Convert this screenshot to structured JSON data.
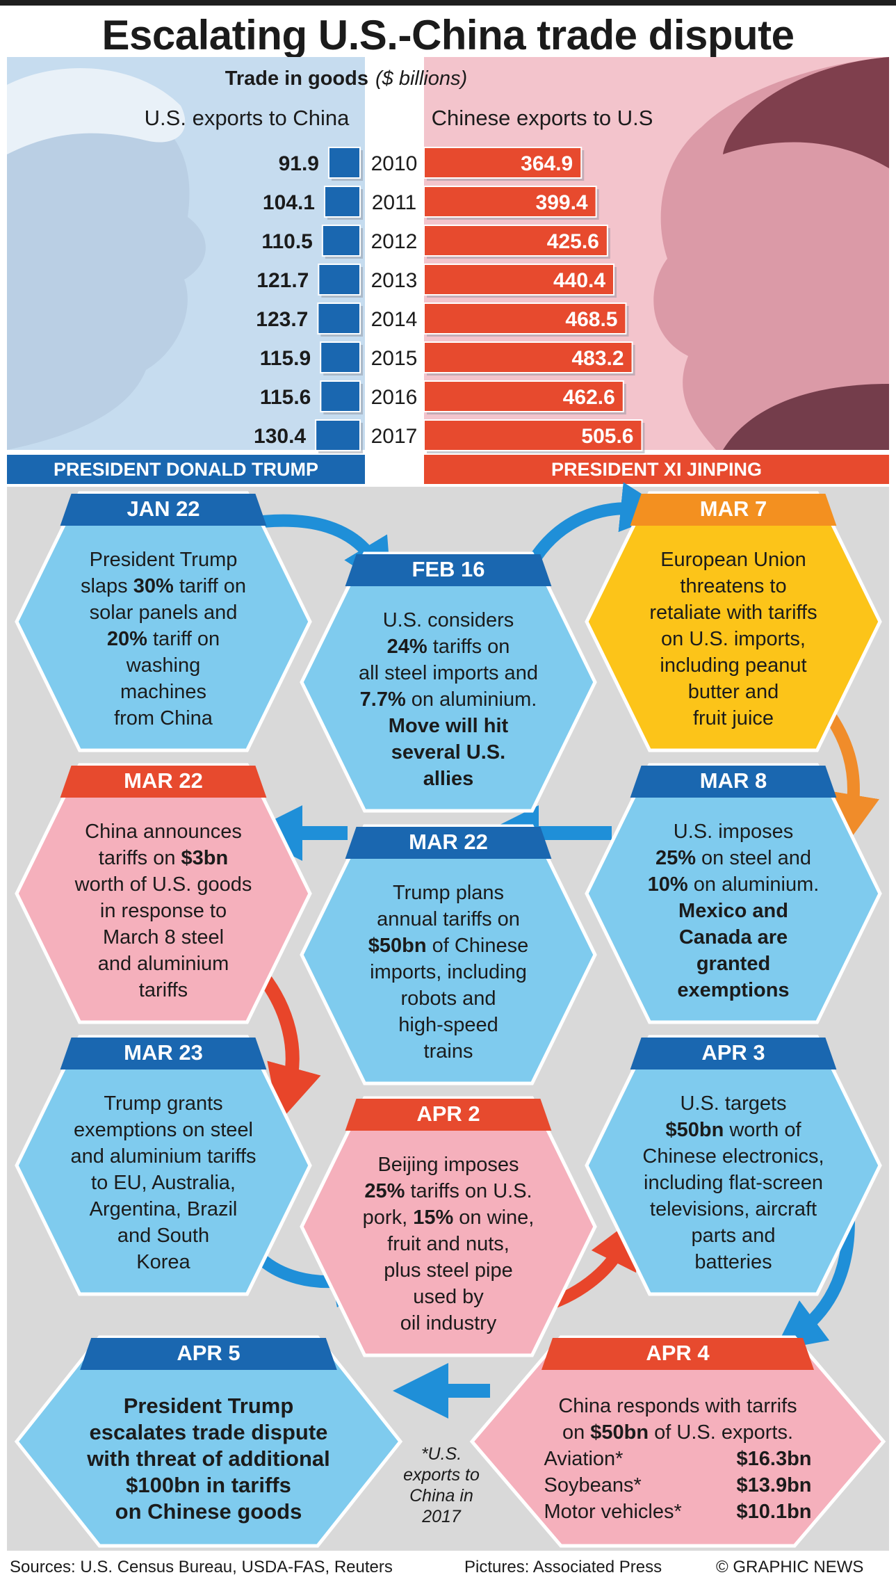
{
  "title": "Escalating U.S.-China trade dispute",
  "trade": {
    "heading": "Trade in goods",
    "unit": "($ billions)",
    "left_label": "PRESIDENT DONALD TRUMP",
    "right_label": "PRESIDENT XI JINPING"
  },
  "chart_data": {
    "type": "bar",
    "title": "Trade in goods ($ billions)",
    "categories": [
      "2010",
      "2011",
      "2012",
      "2013",
      "2014",
      "2015",
      "2016",
      "2017"
    ],
    "series": [
      {
        "name": "U.S. exports to China",
        "values": [
          91.9,
          104.1,
          110.5,
          121.7,
          123.7,
          115.9,
          115.6,
          130.4
        ],
        "color": "#1a67b0"
      },
      {
        "name": "Chinese exports to U.S",
        "values": [
          364.9,
          399.4,
          425.6,
          440.4,
          468.5,
          483.2,
          462.6,
          505.6
        ],
        "color": "#e74a2e"
      }
    ],
    "value_labels": {
      "us": [
        "91.9",
        "104.1",
        "110.5",
        "121.7",
        "123.7",
        "115.9",
        "115.6",
        "130.4"
      ],
      "china": [
        "364.9",
        "399.4",
        "425.6",
        "440.4",
        "468.5",
        "483.2",
        "462.6",
        "505.6"
      ]
    }
  },
  "timeline": [
    {
      "id": "jan22",
      "date": "JAN 22",
      "theme": "blue",
      "lines": [
        "President Trump",
        "slaps **30%** tariff on",
        "solar panels and",
        "**20%** tariff on",
        "washing",
        "machines",
        "from China"
      ]
    },
    {
      "id": "feb16",
      "date": "FEB 16",
      "theme": "blue",
      "lines": [
        "U.S. considers",
        "**24%** tariffs on",
        "all steel imports and",
        "**7.7%** on aluminium.",
        "**Move will hit**",
        "**several U.S.**",
        "**allies**"
      ]
    },
    {
      "id": "mar7",
      "date": "MAR 7",
      "theme": "yellow",
      "lines": [
        "European Union",
        "threatens to",
        "retaliate with tariffs",
        "on U.S. imports,",
        "including peanut",
        "butter and",
        "fruit juice"
      ]
    },
    {
      "id": "mar22a",
      "date": "MAR 22",
      "theme": "pink",
      "lines": [
        "China announces",
        "tariffs on **$3bn**",
        "worth of U.S. goods",
        "in response to",
        "March 8 steel",
        "and aluminium",
        "tariffs"
      ]
    },
    {
      "id": "mar22b",
      "date": "MAR 22",
      "theme": "blue",
      "lines": [
        "Trump plans",
        "annual tariffs on",
        "**$50bn** of Chinese",
        "imports, including",
        "robots and",
        "high-speed",
        "trains"
      ]
    },
    {
      "id": "mar8",
      "date": "MAR 8",
      "theme": "blue",
      "lines": [
        "U.S. imposes",
        "**25%** on steel and",
        "**10%** on aluminium.",
        "**Mexico and**",
        "**Canada are**",
        "**granted**",
        "**exemptions**"
      ]
    },
    {
      "id": "mar23",
      "date": "MAR 23",
      "theme": "blue",
      "lines": [
        "Trump grants",
        "exemptions on steel",
        "and aluminium tariffs",
        "to EU, Australia,",
        "Argentina, Brazil",
        "and South",
        "Korea"
      ]
    },
    {
      "id": "apr2",
      "date": "APR 2",
      "theme": "pink",
      "lines": [
        "Beijing imposes",
        "**25%** tariffs on U.S.",
        "pork, **15%** on wine,",
        "fruit and nuts,",
        "plus steel pipe",
        "used by",
        "oil industry"
      ]
    },
    {
      "id": "apr3",
      "date": "APR 3",
      "theme": "blue",
      "lines": [
        "U.S. targets",
        "**$50bn** worth of",
        "Chinese electronics,",
        "including flat-screen",
        "televisions, aircraft",
        "parts and",
        "batteries"
      ]
    },
    {
      "id": "apr5",
      "date": "APR 5",
      "theme": "blue",
      "lines": [
        "**President Trump**",
        "**escalates trade dispute**",
        "**with threat of additional**",
        "**$100bn in tariffs**",
        "**on Chinese goods**"
      ]
    },
    {
      "id": "apr4",
      "date": "APR 4",
      "theme": "pink",
      "lines": [
        "China responds with tarrifs",
        "on **$50bn** of U.S. exports."
      ],
      "items": [
        {
          "label": "Aviation*",
          "value": "$16.3bn"
        },
        {
          "label": "Soybeans*",
          "value": "$13.9bn"
        },
        {
          "label": "Motor vehicles*",
          "value": "$10.1bn"
        }
      ]
    }
  ],
  "footnote": [
    "*U.S.",
    "exports to",
    "China in",
    "2017"
  ],
  "footer": {
    "sources": "Sources: U.S. Census Bureau, USDA-FAS, Reuters",
    "pictures": "Pictures: Associated Press",
    "credit": "© GRAPHIC NEWS"
  },
  "colors": {
    "blue_hex": "#7fcbee",
    "blue_hdr": "#1a67b0",
    "pink_hex": "#f5b0bc",
    "pink_hdr": "#e74a2e",
    "yellow_hex": "#fcc419",
    "yellow_hdr": "#f39020",
    "arrow_blue": "#1f8fd8",
    "arrow_orange": "#f08c2a",
    "arrow_red": "#e8452a"
  }
}
